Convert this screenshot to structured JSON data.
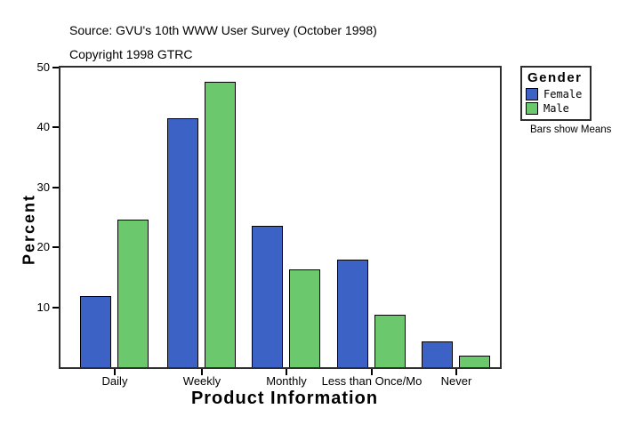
{
  "header": {
    "source_line": "Source: GVU's 10th WWW User Survey (October 1998)",
    "copyright_line": "Copyright 1998 GTRC"
  },
  "legend": {
    "title": "Gender",
    "items": [
      {
        "label": "Female",
        "color": "#3B62C4"
      },
      {
        "label": "Male",
        "color": "#6CC86C"
      }
    ],
    "note": "Bars show Means"
  },
  "chart_data": {
    "type": "bar",
    "title": "",
    "xlabel": "Product Information",
    "ylabel": "Percent",
    "categories": [
      "Daily",
      "Weekly",
      "Monthly",
      "Less than Once/Mo",
      "Never"
    ],
    "series": [
      {
        "name": "Female",
        "color": "#3B62C4",
        "values": [
          11.8,
          41.5,
          23.6,
          18.0,
          4.3
        ]
      },
      {
        "name": "Male",
        "color": "#6CC86C",
        "values": [
          24.7,
          47.6,
          16.3,
          8.7,
          1.9
        ]
      }
    ],
    "ylim": [
      0,
      50
    ],
    "yticks": [
      10,
      20,
      30,
      40,
      50
    ],
    "grid": false,
    "legend_position": "right",
    "bar_outline_color": "#000000"
  }
}
